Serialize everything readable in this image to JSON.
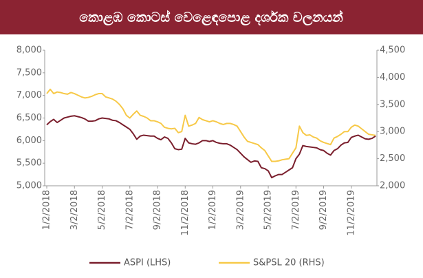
{
  "chart_data": {
    "type": "line",
    "title": "කොළඹ කොටස් වෙළෙඳපොළ දර්ශක චලනයන්",
    "categories": [
      "1/2/2018",
      null,
      null,
      null,
      null,
      null,
      null,
      null,
      "3/2/2018",
      null,
      null,
      null,
      null,
      null,
      null,
      null,
      "5/2/2018",
      null,
      null,
      null,
      null,
      null,
      null,
      null,
      "7/2/2018",
      null,
      null,
      null,
      null,
      null,
      null,
      null,
      "9/2/2018",
      null,
      null,
      null,
      null,
      null,
      null,
      null,
      "11/2/2018",
      null,
      null,
      null,
      null,
      null,
      null,
      null,
      "1/2/2019",
      null,
      null,
      null,
      null,
      null,
      null,
      null,
      "3/2/2019",
      null,
      null,
      null,
      null,
      null,
      null,
      null,
      "5/2/2019",
      null,
      null,
      null,
      null,
      null,
      null,
      null,
      "7/2/2019",
      null,
      null,
      null,
      null,
      null,
      null,
      null,
      "9/2/2019",
      null,
      null,
      null,
      null,
      null,
      null,
      null,
      "11/2/2019",
      null,
      null,
      null,
      null,
      null,
      null,
      null
    ],
    "series": [
      {
        "name": "ASPI (LHS)",
        "color": "#7a1e2c",
        "axis": "y",
        "values": [
          6350,
          6420,
          6470,
          6400,
          6450,
          6500,
          6520,
          6540,
          6550,
          6530,
          6510,
          6480,
          6430,
          6430,
          6440,
          6480,
          6500,
          6490,
          6480,
          6450,
          6440,
          6400,
          6350,
          6300,
          6250,
          6150,
          6030,
          6100,
          6120,
          6110,
          6100,
          6100,
          6050,
          6020,
          6080,
          6050,
          5950,
          5820,
          5800,
          5810,
          6050,
          5950,
          5930,
          5920,
          5950,
          6000,
          6000,
          5980,
          6000,
          5960,
          5940,
          5930,
          5930,
          5900,
          5850,
          5800,
          5720,
          5640,
          5580,
          5520,
          5550,
          5540,
          5400,
          5380,
          5330,
          5180,
          5220,
          5250,
          5250,
          5300,
          5350,
          5400,
          5600,
          5700,
          5890,
          5870,
          5860,
          5850,
          5840,
          5800,
          5780,
          5720,
          5680,
          5780,
          5820,
          5900,
          5950,
          5960,
          6070,
          6100,
          6120,
          6080,
          6040,
          6030,
          6050,
          6100
        ]
      },
      {
        "name": "S&PSL 20 (RHS)",
        "color": "#f7c948",
        "axis": "y2",
        "values": [
          3700,
          3780,
          3700,
          3730,
          3720,
          3700,
          3690,
          3720,
          3700,
          3670,
          3640,
          3620,
          3630,
          3650,
          3680,
          3700,
          3700,
          3640,
          3620,
          3600,
          3560,
          3500,
          3420,
          3300,
          3250,
          3320,
          3380,
          3300,
          3280,
          3250,
          3200,
          3200,
          3180,
          3150,
          3080,
          3060,
          3050,
          3060,
          2980,
          3000,
          3300,
          3100,
          3120,
          3150,
          3260,
          3220,
          3200,
          3180,
          3200,
          3180,
          3150,
          3130,
          3150,
          3150,
          3130,
          3100,
          3000,
          2900,
          2820,
          2800,
          2780,
          2760,
          2700,
          2650,
          2550,
          2450,
          2450,
          2460,
          2480,
          2490,
          2500,
          2600,
          2700,
          3100,
          2980,
          2930,
          2940,
          2900,
          2880,
          2830,
          2800,
          2780,
          2760,
          2880,
          2910,
          2950,
          3000,
          3000,
          3080,
          3120,
          3100,
          3050,
          3000,
          2950,
          2940,
          2930
        ]
      }
    ],
    "ylim": [
      5000,
      8000
    ],
    "yticks": [
      {
        "value": 5000,
        "label": "5,000"
      },
      {
        "value": 5500,
        "label": "5,500"
      },
      {
        "value": 6000,
        "label": "6,000"
      },
      {
        "value": 6500,
        "label": "6,500"
      },
      {
        "value": 7000,
        "label": "7,000"
      },
      {
        "value": 7500,
        "label": "7,500"
      },
      {
        "value": 8000,
        "label": "8,000"
      }
    ],
    "y2lim": [
      2000,
      4500
    ],
    "y2ticks": [
      {
        "value": 2000,
        "label": "2,000"
      },
      {
        "value": 2500,
        "label": "2,500"
      },
      {
        "value": 3000,
        "label": "3,000"
      },
      {
        "value": 3500,
        "label": "3,500"
      },
      {
        "value": 4000,
        "label": "4,000"
      },
      {
        "value": 4500,
        "label": "4,500"
      }
    ],
    "grid": false,
    "legend": "bottom"
  }
}
